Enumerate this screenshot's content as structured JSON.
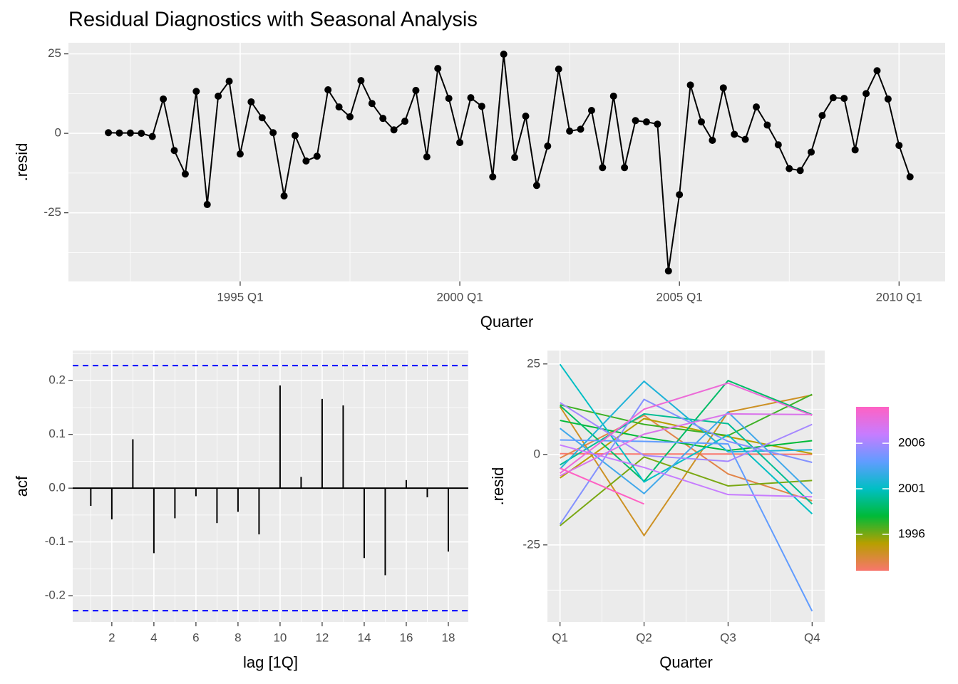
{
  "title": "Residual Diagnostics with Seasonal Analysis",
  "chart_data": [
    {
      "type": "line",
      "xlabel": "Quarter",
      "ylabel": ".resid",
      "x": [
        "1992 Q1",
        "1992 Q2",
        "1992 Q3",
        "1992 Q4",
        "1993 Q1",
        "1993 Q2",
        "1993 Q3",
        "1993 Q4",
        "1994 Q1",
        "1994 Q2",
        "1994 Q3",
        "1994 Q4",
        "1995 Q1",
        "1995 Q2",
        "1995 Q3",
        "1995 Q4",
        "1996 Q1",
        "1996 Q2",
        "1996 Q3",
        "1996 Q4",
        "1997 Q1",
        "1997 Q2",
        "1997 Q3",
        "1997 Q4",
        "1998 Q1",
        "1998 Q2",
        "1998 Q3",
        "1998 Q4",
        "1999 Q1",
        "1999 Q2",
        "1999 Q3",
        "1999 Q4",
        "2000 Q1",
        "2000 Q2",
        "2000 Q3",
        "2000 Q4",
        "2001 Q1",
        "2001 Q2",
        "2001 Q3",
        "2001 Q4",
        "2002 Q1",
        "2002 Q2",
        "2002 Q3",
        "2002 Q4",
        "2003 Q1",
        "2003 Q2",
        "2003 Q3",
        "2003 Q4",
        "2004 Q1",
        "2004 Q2",
        "2004 Q3",
        "2004 Q4",
        "2005 Q1",
        "2005 Q2",
        "2005 Q3",
        "2005 Q4",
        "2006 Q1",
        "2006 Q2",
        "2006 Q3",
        "2006 Q4",
        "2007 Q1",
        "2007 Q2",
        "2007 Q3",
        "2007 Q4",
        "2008 Q1",
        "2008 Q2",
        "2008 Q3",
        "2008 Q4",
        "2009 Q1",
        "2009 Q2",
        "2009 Q3",
        "2009 Q4",
        "2010 Q1",
        "2010 Q2"
      ],
      "values": [
        0.2,
        0.1,
        0.1,
        0,
        -1,
        10.8,
        -5.4,
        -12.8,
        13.2,
        -22.4,
        11.7,
        16.4,
        -6.5,
        9.9,
        4.9,
        0.2,
        -19.7,
        -0.7,
        -8.7,
        -7.2,
        13.7,
        8.3,
        5.2,
        16.6,
        9.4,
        4.7,
        1.1,
        3.8,
        13.5,
        -7.4,
        20.4,
        11.0,
        -2.9,
        11.2,
        8.5,
        -13.7,
        24.9,
        -7.6,
        5.4,
        -16.4,
        -4.0,
        20.2,
        0.7,
        1.3,
        7.2,
        -10.8,
        11.7,
        -10.8,
        4.0,
        3.6,
        2.9,
        -43.3,
        -19.3,
        15.2,
        3.6,
        -2.2,
        14.3,
        -0.3,
        -1.9,
        8.3,
        2.6,
        -3.6,
        -11.1,
        -11.7,
        -5.9,
        5.6,
        11.2,
        11.0,
        -5.2,
        12.5,
        19.7,
        10.8,
        -3.8,
        -13.7
      ],
      "color": "#000000",
      "xlim": [
        1991.09,
        2011.05
      ],
      "xticks": [
        "1995 Q1",
        "2000 Q1",
        "2005 Q1",
        "2010 Q1"
      ],
      "ylim": [
        -46.6,
        28.5
      ],
      "yticks": [
        25,
        0,
        -25
      ],
      "grid": true
    },
    {
      "type": "bar",
      "xlabel": "lag [1Q]",
      "ylabel": "acf",
      "x": [
        1,
        2,
        3,
        4,
        5,
        6,
        7,
        8,
        9,
        10,
        11,
        12,
        13,
        14,
        15,
        16,
        17,
        18
      ],
      "values": [
        -0.033,
        -0.058,
        0.091,
        -0.121,
        -0.056,
        -0.015,
        -0.065,
        -0.044,
        -0.086,
        0.191,
        0.021,
        0.166,
        0.154,
        -0.13,
        -0.162,
        0.015,
        -0.017,
        -0.118
      ],
      "color": "#000000",
      "ci": 0.228,
      "ci_color": "#0000ff",
      "xlim": [
        0.14,
        18.95
      ],
      "xticks": [
        2,
        4,
        6,
        8,
        10,
        12,
        14,
        16,
        18
      ],
      "ylim": [
        -0.249,
        0.256
      ],
      "yticks": [
        0.2,
        0.1,
        {
          "value": 0,
          "label": "0.0"
        },
        -0.1,
        -0.2
      ],
      "grid": true
    },
    {
      "type": "seasonal",
      "xlabel": "Quarter",
      "ylabel": ".resid",
      "categories": [
        "Q1",
        "Q2",
        "Q3",
        "Q4"
      ],
      "ylim": [
        -46.3,
        28.7
      ],
      "yticks": [
        25,
        0,
        -25
      ],
      "grid": true,
      "colorscale": [
        "#F8766D",
        "#B79F00",
        "#00BA38",
        "#00BFC4",
        "#619CFF",
        "#C77CFF",
        "#FF61C3"
      ],
      "colorlim": [
        1992,
        2010
      ],
      "colorticks": [
        1996,
        2001,
        2006
      ],
      "legend": "right"
    }
  ]
}
